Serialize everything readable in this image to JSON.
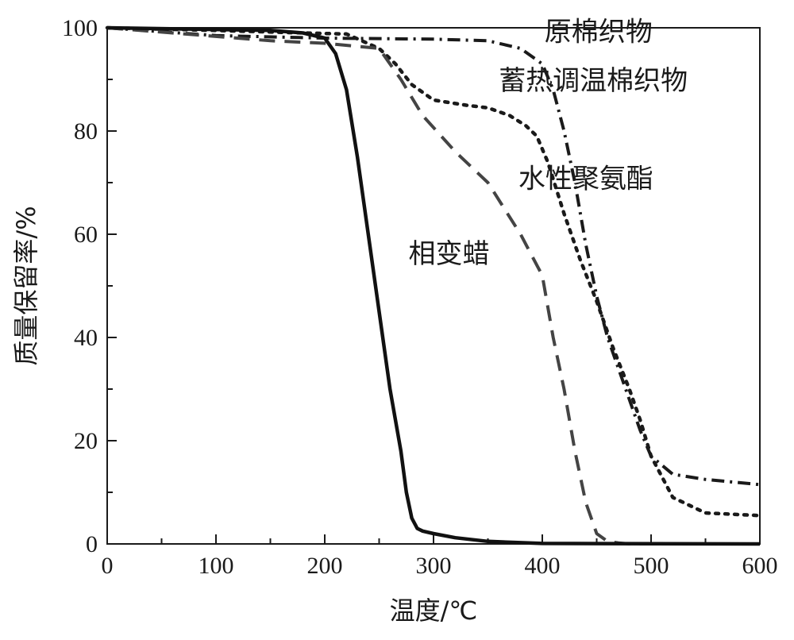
{
  "chart_data": {
    "type": "line",
    "title": "",
    "xlabel": "温度/℃",
    "ylabel": "质量保留率/%",
    "xlim": [
      0,
      600
    ],
    "ylim": [
      0,
      100
    ],
    "xticks": [
      0,
      100,
      200,
      300,
      400,
      500,
      600
    ],
    "yticks": [
      0,
      20,
      40,
      60,
      80,
      100
    ],
    "grid": false,
    "legend": "inline labels",
    "series": [
      {
        "name": "原棉织物",
        "style": "dashdot",
        "color": "#1a1a1a",
        "x": [
          0,
          100,
          200,
          300,
          350,
          380,
          400,
          410,
          420,
          430,
          440,
          450,
          460,
          470,
          480,
          490,
          500,
          520,
          550,
          600
        ],
        "y": [
          100,
          98.5,
          98,
          97.8,
          97.5,
          96,
          93,
          88,
          80,
          70,
          58,
          48,
          40,
          34,
          28,
          22,
          17,
          13.5,
          12.5,
          11.5
        ]
      },
      {
        "name": "蓄热调温棉织物",
        "style": "dotted",
        "color": "#1a1a1a",
        "x": [
          0,
          100,
          180,
          220,
          250,
          265,
          280,
          300,
          330,
          350,
          370,
          385,
          395,
          405,
          420,
          435,
          450,
          465,
          480,
          490,
          500,
          520,
          550,
          600
        ],
        "y": [
          100,
          99.5,
          99,
          98.8,
          96,
          93,
          89,
          86,
          85,
          84.5,
          83,
          81,
          79,
          74,
          64,
          55,
          47,
          38,
          30,
          24,
          17,
          9,
          6,
          5.5
        ]
      },
      {
        "name": "水性聚氨酯",
        "style": "dashed",
        "color": "#444444",
        "x": [
          0,
          150,
          200,
          250,
          270,
          290,
          320,
          350,
          380,
          400,
          410,
          420,
          430,
          440,
          450,
          460,
          470,
          480,
          500,
          600
        ],
        "y": [
          100,
          97.5,
          97,
          96,
          90,
          83,
          76,
          70,
          60,
          52,
          40,
          30,
          18,
          8,
          2,
          0.5,
          0.2,
          0,
          0,
          0
        ]
      },
      {
        "name": "相变蜡",
        "style": "solid",
        "color": "#111111",
        "x": [
          0,
          150,
          180,
          200,
          210,
          220,
          230,
          240,
          250,
          260,
          270,
          275,
          280,
          285,
          290,
          300,
          320,
          350,
          400,
          600
        ],
        "y": [
          100,
          99.5,
          99,
          98,
          95,
          88,
          75,
          60,
          45,
          30,
          18,
          10,
          5,
          3,
          2.5,
          2,
          1.2,
          0.5,
          0.1,
          0
        ]
      }
    ],
    "annotations": [
      {
        "text": "原棉织物",
        "x": 402,
        "y": 97.5
      },
      {
        "text": "蓄热调温棉织物",
        "x": 360,
        "y": 88
      },
      {
        "text": "水性聚氨酯",
        "x": 378,
        "y": 69
      },
      {
        "text": "相变蜡",
        "x": 277,
        "y": 54.5
      }
    ]
  }
}
